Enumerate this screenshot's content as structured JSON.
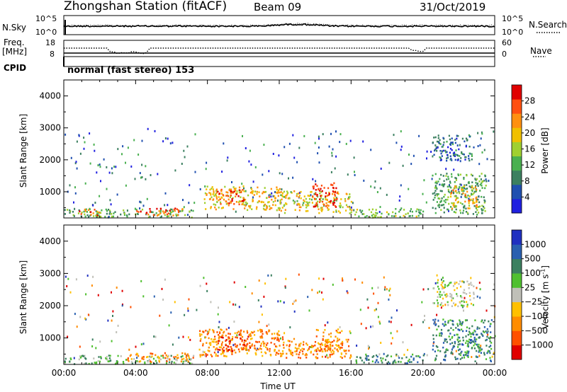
{
  "header": {
    "station": "Zhongshan Station (fitACF)",
    "beam": "Beam 09",
    "date": "31/Oct/2019"
  },
  "noise_panel": {
    "left_label": "N.Sky",
    "left_ticks": [
      "10^5",
      "10^0"
    ],
    "right_ticks": [
      "10^5",
      "10^0"
    ],
    "right_label": "N.Search",
    "right_style": "dotted"
  },
  "freq_panel": {
    "left_label_1": "Freq.",
    "left_label_2": "[MHz]",
    "left_ticks": [
      "18",
      "8"
    ],
    "right_ticks": [
      "60",
      "0"
    ],
    "right_label": "Nave",
    "right_style": "dotted",
    "cpid_label": "CPID"
  },
  "cpid_text": "normal (fast stereo) 153",
  "colors": {
    "power_scale": [
      "#2020e0",
      "#2050b0",
      "#3c8060",
      "#4ab050",
      "#a0d030",
      "#f0c000",
      "#ff9010",
      "#ff5010",
      "#e00000"
    ],
    "velocity_scale": [
      "#e00000",
      "#ff5000",
      "#ff8c00",
      "#ffc000",
      "#c0c0b8",
      "#50c030",
      "#3c8060",
      "#2a60b0",
      "#2030c0"
    ]
  },
  "chart_data": [
    {
      "type": "heatmap",
      "name": "Power",
      "xlabel": "",
      "ylabel": "Slant Range [km]",
      "yticks": [
        "1000",
        "2000",
        "3000",
        "4000"
      ],
      "ylim": [
        180,
        4500
      ],
      "xlim": [
        0,
        24
      ],
      "colorbar_label": "Power [dB]",
      "colorbar_ticks": [
        "4",
        "8",
        "12",
        "16",
        "20",
        "24",
        "28"
      ],
      "colorbar_range": [
        0,
        32
      ],
      "features": [
        {
          "t0": 0.0,
          "t1": 7.2,
          "r0": 220,
          "r1": 480,
          "level": 12
        },
        {
          "t0": 0.8,
          "t1": 2.0,
          "r0": 280,
          "r1": 480,
          "level": 26
        },
        {
          "t0": 4.0,
          "t1": 6.8,
          "r0": 280,
          "r1": 520,
          "level": 26
        },
        {
          "t0": 7.8,
          "t1": 12.0,
          "r0": 450,
          "r1": 1200,
          "level": 20
        },
        {
          "t0": 8.5,
          "t1": 10.0,
          "r0": 600,
          "r1": 1100,
          "level": 26
        },
        {
          "t0": 12.0,
          "t1": 16.0,
          "r0": 350,
          "r1": 1050,
          "level": 18
        },
        {
          "t0": 13.8,
          "t1": 15.2,
          "r0": 550,
          "r1": 1300,
          "level": 30
        },
        {
          "t0": 16.0,
          "t1": 20.0,
          "r0": 220,
          "r1": 500,
          "level": 14
        },
        {
          "t0": 20.5,
          "t1": 23.5,
          "r0": 300,
          "r1": 1600,
          "level": 12
        },
        {
          "t0": 21.5,
          "t1": 23.0,
          "r0": 500,
          "r1": 1200,
          "level": 22
        },
        {
          "t0": 20.5,
          "t1": 22.8,
          "r0": 2000,
          "r1": 2800,
          "level": 7
        }
      ]
    },
    {
      "type": "heatmap",
      "name": "Velocity",
      "xlabel": "Time UT",
      "ylabel": "Slant Range [km]",
      "xticks": [
        "00:00",
        "04:00",
        "08:00",
        "12:00",
        "16:00",
        "20:00",
        "00:00"
      ],
      "yticks": [
        "1000",
        "2000",
        "3000",
        "4000"
      ],
      "ylim": [
        180,
        4500
      ],
      "xlim": [
        0,
        24
      ],
      "colorbar_label": "Velocity [m s^-1]",
      "colorbar_ticks": [
        "-1000",
        "-500",
        "-100",
        "-25",
        "25",
        "100",
        "500",
        "1000"
      ],
      "features": [
        {
          "t0": 0.0,
          "t1": 7.2,
          "r0": 220,
          "r1": 480,
          "level": 5
        },
        {
          "t0": 3.5,
          "t1": 7.2,
          "r0": 280,
          "r1": 560,
          "level": 2
        },
        {
          "t0": 7.5,
          "t1": 12.0,
          "r0": 450,
          "r1": 1300,
          "level": 2
        },
        {
          "t0": 8.5,
          "t1": 10.5,
          "r0": 600,
          "r1": 1200,
          "level": 1
        },
        {
          "t0": 12.0,
          "t1": 16.0,
          "r0": 400,
          "r1": 1000,
          "level": 2
        },
        {
          "t0": 14.0,
          "t1": 15.5,
          "r0": 600,
          "r1": 1300,
          "level": 2
        },
        {
          "t0": 16.0,
          "t1": 20.0,
          "r0": 220,
          "r1": 520,
          "level": 6
        },
        {
          "t0": 20.5,
          "t1": 23.8,
          "r0": 300,
          "r1": 1600,
          "level": 6
        },
        {
          "t0": 20.5,
          "t1": 22.8,
          "r0": 2000,
          "r1": 2800,
          "level": 4
        }
      ]
    }
  ]
}
